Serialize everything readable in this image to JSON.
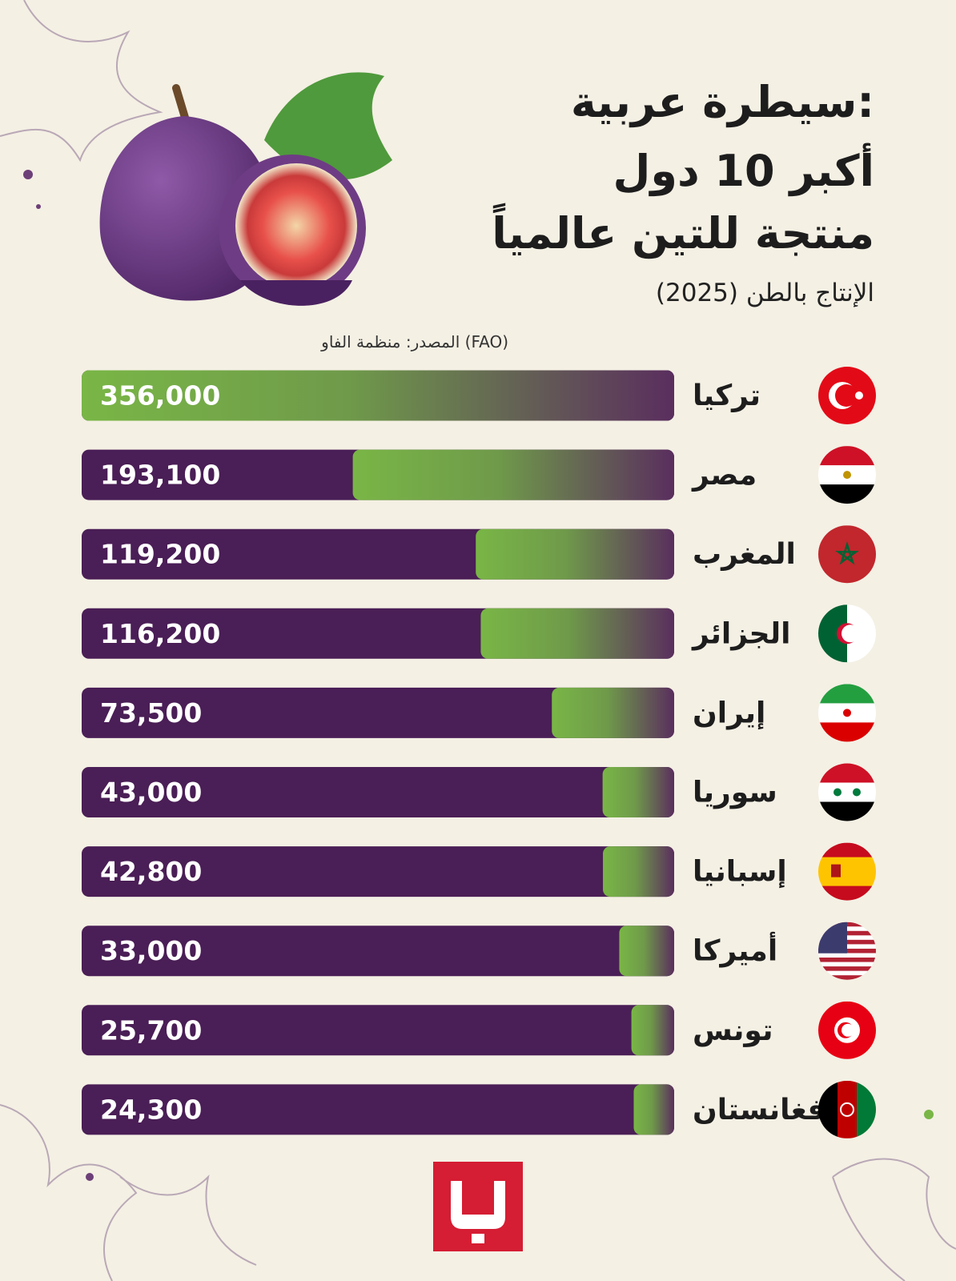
{
  "chart_data": {
    "type": "bar",
    "title": [
      "سيطرة عربية:",
      "أكبر 10 دول",
      "منتجة للتين عالمياً"
    ],
    "subtitle": "الإنتاج بالطن (2025)",
    "source": "المصدر: منظمة الفاو (FAO)",
    "categories": [
      "تركيا",
      "مصر",
      "المغرب",
      "الجزائر",
      "إيران",
      "سوريا",
      "إسبانيا",
      "أميركا",
      "تونس",
      "أفغانستان"
    ],
    "values": [
      356000,
      193100,
      119200,
      116200,
      73500,
      43000,
      42800,
      33000,
      25700,
      24300
    ],
    "value_labels": [
      "356,000",
      "193,100",
      "119,200",
      "116,200",
      "73,500",
      "43,000",
      "42,800",
      "33,000",
      "25,700",
      "24,300"
    ],
    "xlim": [
      0,
      356000
    ],
    "color": "#79b646"
  }
}
